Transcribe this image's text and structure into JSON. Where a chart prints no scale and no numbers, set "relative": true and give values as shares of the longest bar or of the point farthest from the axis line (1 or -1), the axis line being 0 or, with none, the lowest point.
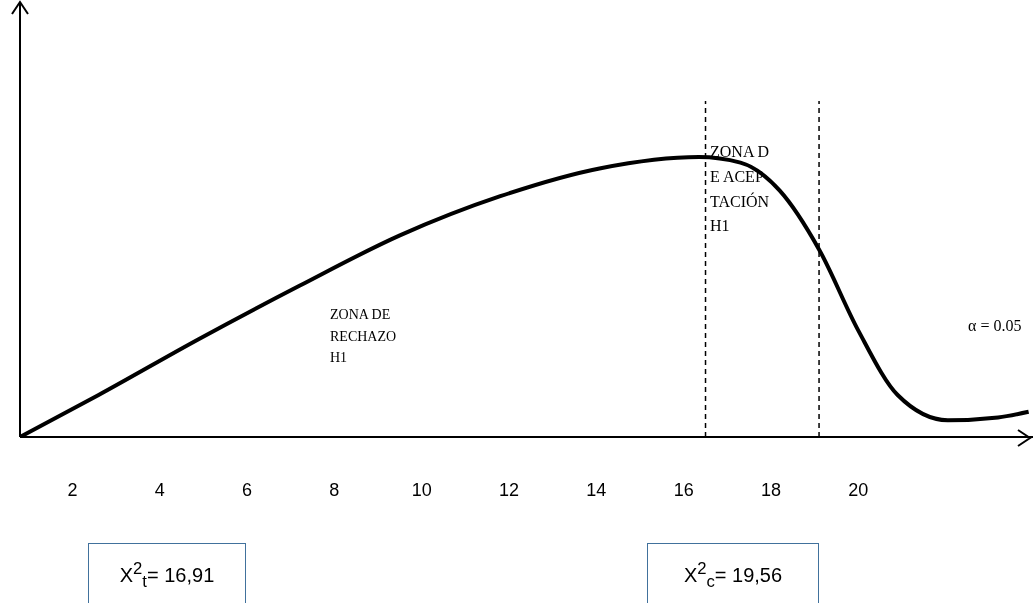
{
  "chart_data": {
    "type": "line",
    "relative": true,
    "x": [
      0.8,
      2.6,
      4.9,
      7.2,
      9.5,
      11.8,
      14.1,
      16.35,
      17.3,
      18.2,
      19.1,
      20.0,
      20.9,
      22.05,
      23.2,
      23.9
    ],
    "series": [
      {
        "color": "#000000",
        "values": [
          0,
          0.15,
          0.35,
          0.54,
          0.72,
          0.86,
          0.96,
          1.0,
          0.98,
          0.88,
          0.67,
          0.38,
          0.15,
          0.06,
          0.07,
          0.09
        ]
      }
    ],
    "xlim": [
      0.8,
      24
    ],
    "xticks": [
      2,
      4,
      6,
      8,
      10,
      12,
      14,
      16,
      18,
      20
    ],
    "ref_lines": [
      {
        "axis": "x",
        "value": 16.5,
        "color": "#000000",
        "line_style": "dashed"
      },
      {
        "axis": "x",
        "value": 19.1,
        "color": "#000000",
        "line_style": "dashed"
      }
    ],
    "annotations": [
      "ZONA DE RECHAZO H1",
      "ZONA DE ACEPTACIÓN H1",
      "α = 0.05",
      "X$^{2}$$_{t}$= 16,91",
      "X$^{2}$$_{c}$= 19,56"
    ]
  }
}
